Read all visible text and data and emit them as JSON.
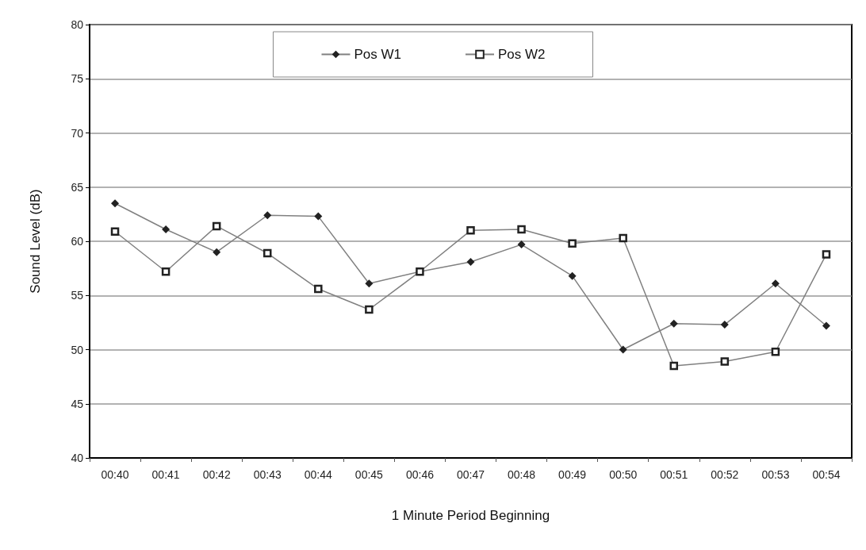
{
  "chart_data": {
    "type": "line",
    "xlabel": "1 Minute Period Beginning",
    "ylabel": "Sound Level (dB)",
    "categories": [
      "00:40",
      "00:41",
      "00:42",
      "00:43",
      "00:44",
      "00:45",
      "00:46",
      "00:47",
      "00:48",
      "00:49",
      "00:50",
      "00:51",
      "00:52",
      "00:53",
      "00:54"
    ],
    "series": [
      {
        "name": "Pos W1",
        "color": "#222222",
        "marker": "diamond",
        "values": [
          63.5,
          61.1,
          59.0,
          62.4,
          62.3,
          56.1,
          57.2,
          58.1,
          59.7,
          56.8,
          50.0,
          52.4,
          52.3,
          56.1,
          52.2
        ]
      },
      {
        "name": "Pos W2",
        "color": "#222222",
        "marker": "square",
        "values": [
          60.9,
          57.2,
          61.4,
          58.9,
          55.6,
          53.7,
          57.2,
          61.0,
          61.1,
          59.8,
          60.3,
          48.5,
          48.9,
          49.8,
          58.8
        ]
      }
    ],
    "ylim": [
      40,
      80
    ],
    "yticks": [
      40,
      45,
      50,
      55,
      60,
      65,
      70,
      75,
      80
    ],
    "grid": "y",
    "legend": "top",
    "line_style": "solid"
  }
}
